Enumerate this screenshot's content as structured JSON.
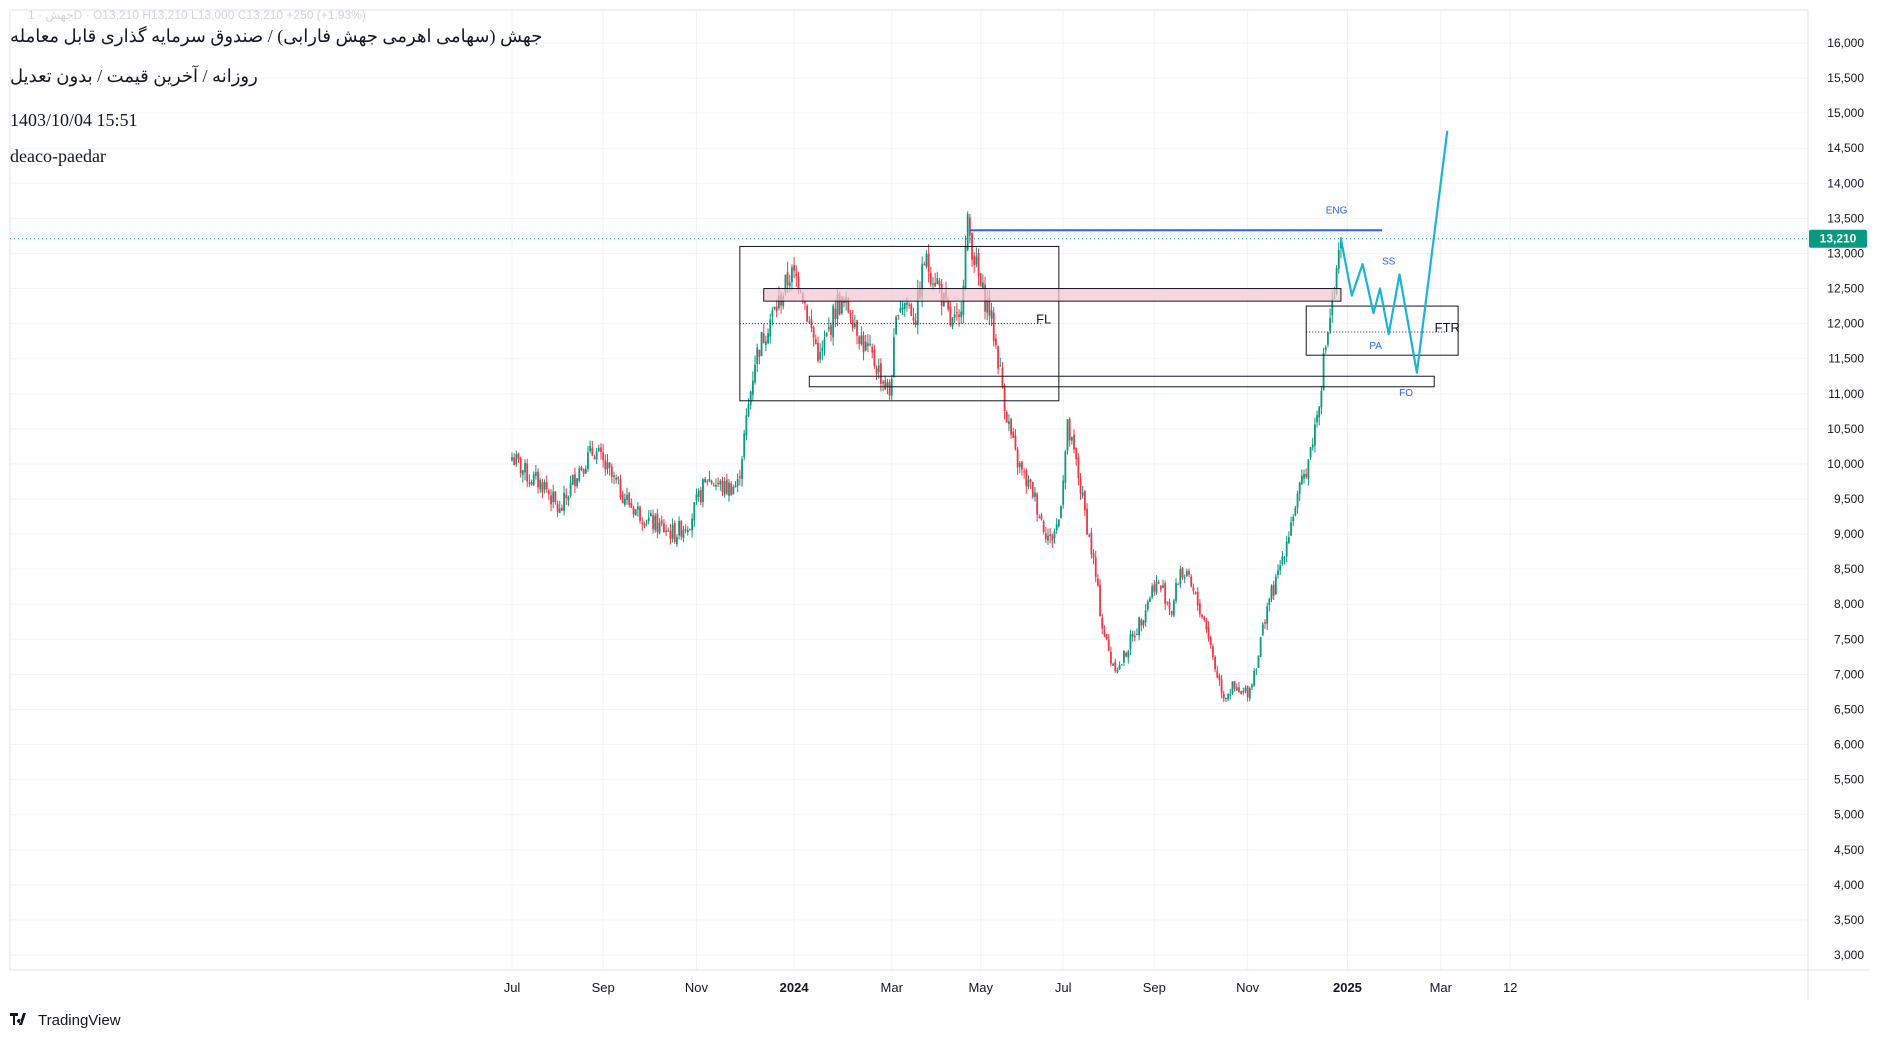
{
  "header": {
    "ticker_line": "جهش · 1D · O13,210 H13,210 L13,000 C13,210 +250 (+1.93%)",
    "title": "جهش (سهامی اهرمی جهش فارابی) / صندوق سرمایه گذاری قابل معامله",
    "subtitle": "روزانه / آخرین قیمت / بدون تعدیل",
    "datetime": "1403/10/04 15:51",
    "author": "deaco-paedar"
  },
  "footer": {
    "brand": "TradingView",
    "logo": "tradingview-logo-icon"
  },
  "colors": {
    "up": "#089981",
    "down": "#f23645",
    "projection": "#1cb5d1",
    "resistance": "#2962ff",
    "zone": "#f7c5d2",
    "grid": "#f0f3fa",
    "last_price": "#089981"
  },
  "chart_data": {
    "type": "candlestick",
    "ylim": [
      2800,
      16400
    ],
    "y_ticks": [
      "3,000",
      "3,500",
      "4,000",
      "4,500",
      "5,000",
      "5,500",
      "6,000",
      "6,500",
      "7,000",
      "7,500",
      "8,000",
      "8,500",
      "9,000",
      "9,500",
      "10,000",
      "10,500",
      "11,000",
      "11,500",
      "12,000",
      "12,500",
      "13,000",
      "13,500",
      "14,000",
      "14,500",
      "15,000",
      "15,500",
      "16,000"
    ],
    "x_ticks": [
      {
        "label": "Jul",
        "i": 0,
        "bold": false
      },
      {
        "label": "Sep",
        "i": 42,
        "bold": false
      },
      {
        "label": "Nov",
        "i": 85,
        "bold": false
      },
      {
        "label": "2024",
        "i": 130,
        "bold": true
      },
      {
        "label": "Mar",
        "i": 175,
        "bold": false
      },
      {
        "label": "May",
        "i": 216,
        "bold": false
      },
      {
        "label": "Jul",
        "i": 254,
        "bold": false
      },
      {
        "label": "Sep",
        "i": 296,
        "bold": false
      },
      {
        "label": "Nov",
        "i": 339,
        "bold": false
      },
      {
        "label": "2025",
        "i": 385,
        "bold": true
      },
      {
        "label": "Mar",
        "i": 428,
        "bold": false
      },
      {
        "label": "12",
        "i": 460,
        "bold": false
      }
    ],
    "last_price": {
      "value": 13210,
      "label": "13,210"
    },
    "price_path": [
      [
        0,
        10100
      ],
      [
        8,
        9800
      ],
      [
        15,
        9700
      ],
      [
        22,
        9300
      ],
      [
        30,
        9900
      ],
      [
        38,
        10200
      ],
      [
        46,
        9800
      ],
      [
        55,
        9400
      ],
      [
        65,
        9150
      ],
      [
        75,
        9000
      ],
      [
        82,
        9200
      ],
      [
        90,
        9800
      ],
      [
        98,
        9650
      ],
      [
        104,
        9700
      ],
      [
        108,
        10600
      ],
      [
        112,
        11500
      ],
      [
        118,
        12000
      ],
      [
        123,
        12300
      ],
      [
        128,
        12700
      ],
      [
        133,
        12600
      ],
      [
        137,
        12000
      ],
      [
        142,
        11500
      ],
      [
        146,
        11900
      ],
      [
        150,
        12300
      ],
      [
        156,
        12200
      ],
      [
        162,
        11700
      ],
      [
        168,
        11400
      ],
      [
        174,
        11000
      ],
      [
        178,
        12300
      ],
      [
        182,
        12300
      ],
      [
        186,
        12100
      ],
      [
        190,
        12900
      ],
      [
        196,
        12600
      ],
      [
        202,
        12000
      ],
      [
        206,
        12000
      ],
      [
        210,
        13400
      ],
      [
        216,
        12500
      ],
      [
        220,
        12200
      ],
      [
        224,
        11500
      ],
      [
        228,
        10700
      ],
      [
        232,
        10100
      ],
      [
        236,
        9800
      ],
      [
        240,
        9600
      ],
      [
        244,
        9200
      ],
      [
        248,
        8900
      ],
      [
        252,
        9200
      ],
      [
        256,
        10500
      ],
      [
        260,
        10000
      ],
      [
        264,
        9300
      ],
      [
        268,
        8600
      ],
      [
        272,
        7700
      ],
      [
        276,
        7200
      ],
      [
        280,
        7100
      ],
      [
        284,
        7400
      ],
      [
        290,
        7800
      ],
      [
        296,
        8300
      ],
      [
        300,
        8200
      ],
      [
        304,
        7900
      ],
      [
        308,
        8500
      ],
      [
        312,
        8300
      ],
      [
        316,
        8000
      ],
      [
        320,
        7700
      ],
      [
        324,
        7100
      ],
      [
        328,
        6700
      ],
      [
        332,
        6800
      ],
      [
        336,
        6700
      ],
      [
        340,
        6800
      ],
      [
        344,
        7300
      ],
      [
        348,
        8000
      ],
      [
        352,
        8300
      ],
      [
        356,
        8800
      ],
      [
        360,
        9300
      ],
      [
        364,
        9700
      ],
      [
        368,
        10200
      ],
      [
        371,
        10700
      ],
      [
        373,
        11200
      ],
      [
        375,
        11700
      ],
      [
        377,
        12100
      ],
      [
        379,
        12400
      ],
      [
        381,
        12900
      ],
      [
        382,
        13210
      ]
    ],
    "boxes": [
      {
        "i0": 105,
        "i1": 252,
        "y0": 10900,
        "y1": 13100,
        "label": "",
        "stroke": "#131722",
        "fill": "none"
      },
      {
        "i0": 116,
        "i1": 382,
        "y0": 12320,
        "y1": 12500,
        "label": "",
        "stroke": "#131722",
        "fill": "#f7c5d2"
      },
      {
        "i0": 137,
        "i1": 425,
        "y0": 11100,
        "y1": 11250,
        "label": "",
        "stroke": "#131722",
        "fill": "none"
      },
      {
        "i0": 366,
        "i1": 436,
        "y0": 11550,
        "y1": 12250,
        "label": "FTR",
        "stroke": "#131722",
        "fill": "none"
      }
    ],
    "annotations": [
      {
        "text": "FL",
        "i": 245,
        "y": 12000,
        "color": "#131722",
        "size": 13
      },
      {
        "text": "FTR",
        "i": 431,
        "y": 11880,
        "color": "#131722",
        "size": 13
      },
      {
        "text": "ENG",
        "i": 380,
        "y": 13570,
        "color": "#2962ff",
        "size": 10
      },
      {
        "text": "SS",
        "i": 404,
        "y": 12840,
        "color": "#2962ff",
        "size": 10
      },
      {
        "text": "PA",
        "i": 398,
        "y": 11640,
        "color": "#2962ff",
        "size": 10
      },
      {
        "text": "FO",
        "i": 412,
        "y": 10970,
        "color": "#2962ff",
        "size": 10
      }
    ],
    "dotted_lines": [
      {
        "i0": 105,
        "i1": 244,
        "y": 12000
      },
      {
        "i0": 366,
        "i1": 431,
        "y": 11880
      }
    ],
    "resistance_line": {
      "i0": 211,
      "i1": 401,
      "y": 13330
    },
    "projection_path": [
      [
        382,
        13210
      ],
      [
        387,
        12400
      ],
      [
        392,
        12850
      ],
      [
        397,
        12150
      ],
      [
        400,
        12500
      ],
      [
        404,
        11850
      ],
      [
        409,
        12700
      ],
      [
        417,
        11300
      ],
      [
        431,
        14750
      ]
    ]
  }
}
